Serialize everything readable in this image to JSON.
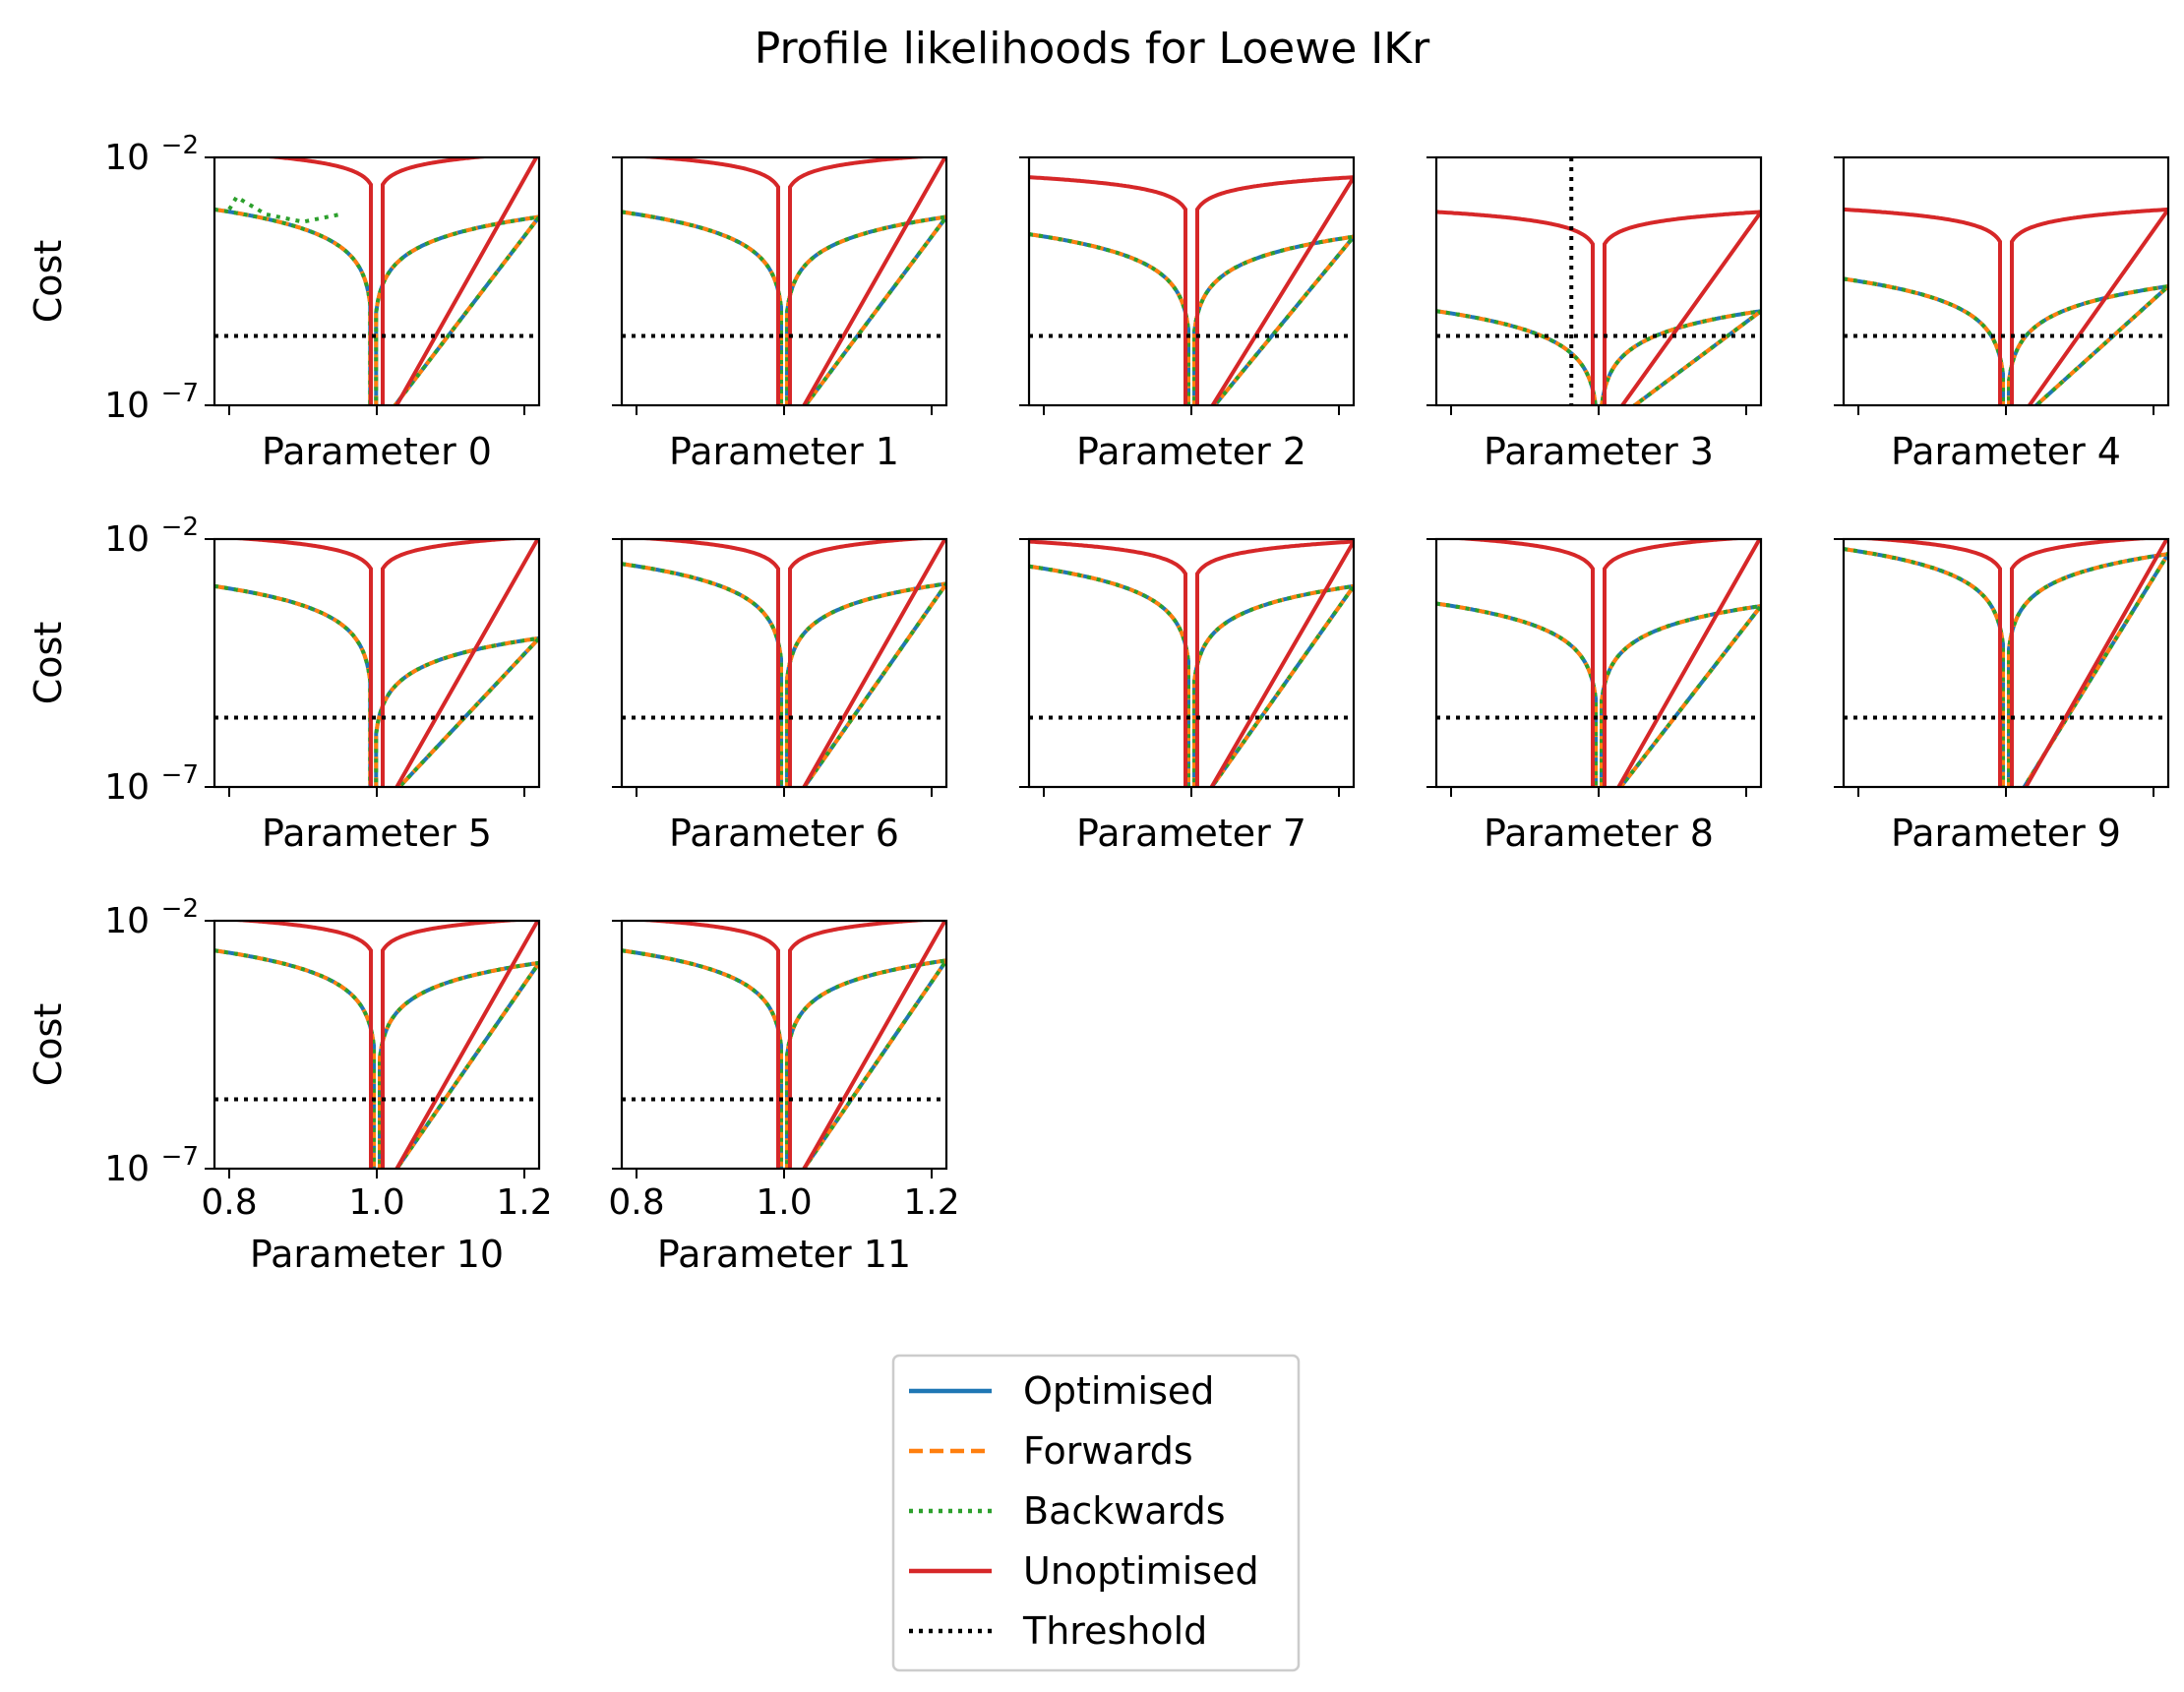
{
  "chart_data": {
    "type": "line",
    "title": "Profile likelihoods for Loewe IKr",
    "ylabel": "Cost",
    "xlim": [
      0.78,
      1.22
    ],
    "ylim_exponent": [
      -7,
      -2
    ],
    "y_scale": "log",
    "x_ticks": [
      {
        "value": 0.8,
        "label": "0.8"
      },
      {
        "value": 1.0,
        "label": "1.0"
      },
      {
        "value": 1.2,
        "label": "1.2"
      }
    ],
    "y_ticks": [
      {
        "exponent": -2,
        "base": "10",
        "exp_label": "−2"
      },
      {
        "exponent": -7,
        "base": "10",
        "exp_label": "−7"
      }
    ],
    "threshold_exponent": -5.6,
    "legend_position": "bottom-center",
    "series": [
      {
        "key": "opt",
        "name": "Optimised",
        "color": "#1f77b4",
        "dash": "solid"
      },
      {
        "key": "fwd",
        "name": "Forwards",
        "color": "#ff7f0e",
        "dash": "dashed"
      },
      {
        "key": "bwd",
        "name": "Backwards",
        "color": "#2ca02c",
        "dash": "dotted"
      },
      {
        "key": "unopt",
        "name": "Unoptimised",
        "color": "#d62728",
        "dash": "solid"
      },
      {
        "key": "thr",
        "name": "Threshold",
        "color": "#000000",
        "dash": "dotted"
      }
    ],
    "panels": [
      {
        "xlabel": "Parameter 0",
        "unopt_left": -1.9,
        "unopt_right": -1.9,
        "opt_left": -3.05,
        "opt_right": -3.2,
        "opt_min_x": 0.995,
        "bwd_bump_exponent": -2.8
      },
      {
        "xlabel": "Parameter 1",
        "unopt_left": -1.95,
        "unopt_right": -1.95,
        "opt_left": -3.1,
        "opt_right": -3.2,
        "opt_min_x": 1.0
      },
      {
        "xlabel": "Parameter 2",
        "unopt_left": -2.4,
        "unopt_right": -2.4,
        "opt_left": -3.55,
        "opt_right": -3.6,
        "opt_min_x": 1.0
      },
      {
        "xlabel": "Parameter 3",
        "unopt_left": -3.1,
        "unopt_right": -3.1,
        "opt_left": -5.1,
        "opt_right": -5.1,
        "opt_min_x": 1.0,
        "vertical_marker_x": 0.963
      },
      {
        "xlabel": "Parameter 4",
        "unopt_left": -3.05,
        "unopt_right": -3.05,
        "opt_left": -4.45,
        "opt_right": -4.6,
        "opt_min_x": 1.0
      },
      {
        "xlabel": "Parameter 5",
        "unopt_left": -1.95,
        "unopt_right": -1.95,
        "opt_left": -2.95,
        "opt_right": -4.0,
        "opt_min_x": 0.995
      },
      {
        "xlabel": "Parameter 6",
        "unopt_left": -1.95,
        "unopt_right": -1.95,
        "opt_left": -2.5,
        "opt_right": -2.9,
        "opt_min_x": 1.0
      },
      {
        "xlabel": "Parameter 7",
        "unopt_left": -2.05,
        "unopt_right": -2.05,
        "opt_left": -2.55,
        "opt_right": -2.95,
        "opt_min_x": 1.0
      },
      {
        "xlabel": "Parameter 8",
        "unopt_left": -1.95,
        "unopt_right": -1.95,
        "opt_left": -3.3,
        "opt_right": -3.35,
        "opt_min_x": 1.0
      },
      {
        "xlabel": "Parameter 9",
        "unopt_left": -1.95,
        "unopt_right": -1.95,
        "opt_left": -2.2,
        "opt_right": -2.3,
        "opt_min_x": 1.0
      },
      {
        "xlabel": "Parameter 10",
        "unopt_left": -1.95,
        "unopt_right": -1.95,
        "opt_left": -2.6,
        "opt_right": -2.85,
        "opt_min_x": 1.0
      },
      {
        "xlabel": "Parameter 11",
        "unopt_left": -1.95,
        "unopt_right": -1.95,
        "opt_left": -2.6,
        "opt_right": -2.8,
        "opt_min_x": 1.0
      }
    ]
  }
}
